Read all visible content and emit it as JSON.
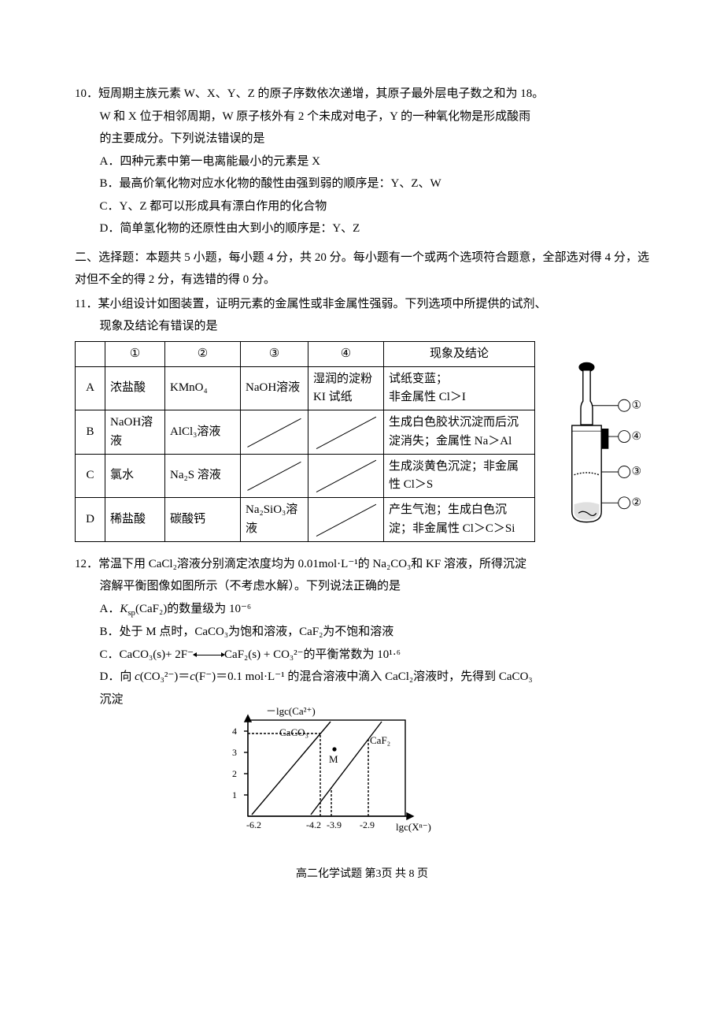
{
  "q10": {
    "num": "10．",
    "stem_l1": "短周期主族元素 W、X、Y、Z 的原子序数依次递增，其原子最外层电子数之和为 18。",
    "stem_l2": "W 和 X 位于相邻周期，W 原子核外有 2 个未成对电子，Y 的一种氧化物是形成酸雨",
    "stem_l3": "的主要成分。下列说法错误的是",
    "A": "A．四种元素中第一电离能最小的元素是 X",
    "B": "B．最高价氧化物对应水化物的酸性由强到弱的顺序是：Y、Z、W",
    "C": "C．Y、Z 都可以形成具有漂白作用的化合物",
    "D": "D．简单氢化物的还原性由大到小的顺序是：Y、Z"
  },
  "section2": "二、选择题：本题共 5 小题，每小题 4 分，共 20 分。每小题有一个或两个选项符合题意，全部选对得 4 分，选对但不全的得 2 分，有选错的得 0 分。",
  "q11": {
    "num": "11．",
    "stem_l1": "某小组设计如图装置，证明元素的金属性或非金属性强弱。下列选项中所提供的试剂、",
    "stem_l2": "现象及结论有错误的是",
    "headers": [
      "",
      "①",
      "②",
      "③",
      "④",
      "现象及结论"
    ],
    "rows": [
      {
        "k": "A",
        "c1": "浓盐酸",
        "c2": "KMnO₄",
        "c3": "NaOH溶液",
        "c4": "湿润的淀粉 KI 试纸",
        "c5": "试纸变蓝；\n非金属性 Cl＞I"
      },
      {
        "k": "B",
        "c1": "NaOH溶液",
        "c2": "AlCl₃溶液",
        "c3": "SLASH",
        "c4": "SLASH",
        "c5": "生成白色胶状沉淀而后沉淀消失；金属性 Na＞Al"
      },
      {
        "k": "C",
        "c1": "氯水",
        "c2": "Na₂S 溶液",
        "c3": "SLASH",
        "c4": "SLASH",
        "c5": "生成淡黄色沉淀；非金属性 Cl＞S"
      },
      {
        "k": "D",
        "c1": "稀盐酸",
        "c2": "碳酸钙",
        "c3": "Na₂SiO₃溶液",
        "c4": "SLASH",
        "c5": "产生气泡；生成白色沉淀；非金属性 Cl＞C＞Si"
      }
    ],
    "apparatus_labels": {
      "l1": "①",
      "l2": "②",
      "l3": "③",
      "l4": "④"
    },
    "svg_colors": {
      "stroke": "#000000",
      "fill": "#ffffff",
      "shade": "#000000"
    }
  },
  "q12": {
    "num": "12．",
    "stem_l1": "常温下用 CaCl₂溶液分别滴定浓度均为 0.01mol·L⁻¹的 Na₂CO₃和 KF 溶液，所得沉淀",
    "stem_l2": "溶解平衡图像如图所示（不考虑水解）。下列说法正确的是",
    "A_pre": "A．",
    "A_ital": "K",
    "A_sub": "sp",
    "A_post": "(CaF₂)的数量级为 10⁻⁶",
    "B": "B．处于 M 点时，CaCO₃为饱和溶液，CaF₂为不饱和溶液",
    "C_pre": "C．CaCO₃(s)+ 2F⁻",
    "C_post": "CaF₂(s) + CO₃²⁻的平衡常数为 10¹·⁶",
    "D_l1_pre": "D．向 ",
    "D_l1_c": "c",
    "D_l1_mid1": "(CO₃²⁻)＝",
    "D_l1_mid2": "(F⁻)＝0.1 mol·L⁻¹ 的混合溶液中滴入 CaCl₂溶液时，先得到 CaCO₃",
    "D_l2": "沉淀",
    "graph": {
      "ylabel": "－lgc(Ca²⁺)",
      "xlabel": "lgc(Xⁿ⁻)",
      "y_ticks": [
        "1",
        "2",
        "3",
        "4"
      ],
      "x_ticks": [
        "-6.2",
        "-4.2",
        "-3.9",
        "-2.9"
      ],
      "line1_label": "CaCO₃",
      "line2_label": "CaF₂",
      "point_label": "M",
      "colors": {
        "axis": "#000000",
        "grid": "#000000",
        "bg": "#ffffff"
      },
      "xlim": [
        -6.4,
        -2.5
      ],
      "ylim": [
        0.7,
        4.7
      ],
      "line_width": 1.4,
      "dash": "3,2",
      "font_size_axis": 13,
      "font_size_tick": 12
    }
  },
  "footer": "高二化学试题  第3页  共 8 页"
}
